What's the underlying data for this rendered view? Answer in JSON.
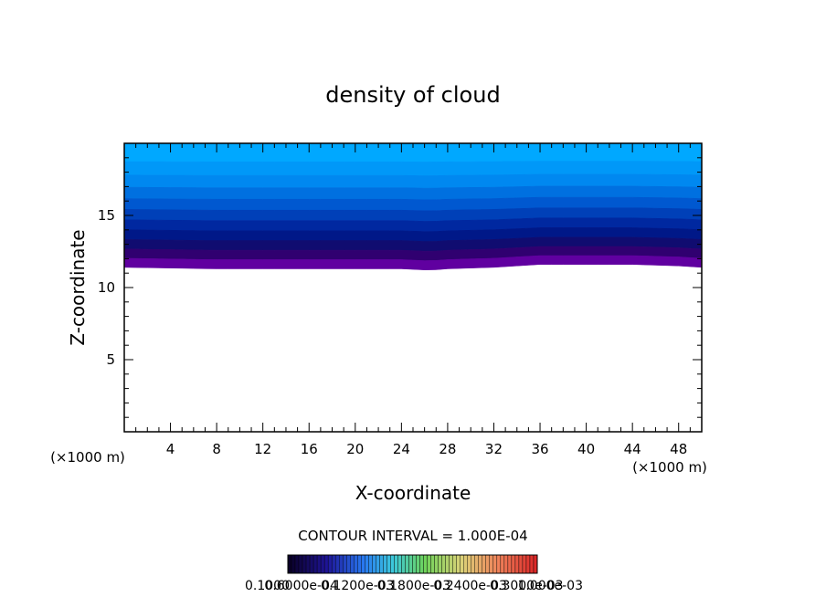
{
  "chart_data": {
    "type": "heatmap",
    "title": "density of cloud",
    "xlabel": "X-coordinate",
    "ylabel": "Z-coordinate",
    "x_unit": "(×1000 m)",
    "x_unit_right": "(×1000 m)",
    "xlim": [
      0,
      50
    ],
    "ylim": [
      0,
      20
    ],
    "x_ticks": [
      "4",
      "8",
      "12",
      "16",
      "20",
      "24",
      "28",
      "32",
      "36",
      "40",
      "44",
      "48"
    ],
    "y_ticks": [
      "5",
      "10",
      "15"
    ],
    "contour_interval_text": "CONTOUR INTERVAL = 1.000E-04",
    "colorbar_labels": [
      "0.1000",
      "0.6000e-04",
      "0.1200e-03",
      "0.1800e-03",
      "0.2400e-03",
      "0.3000e-03",
      "1.000e-03"
    ],
    "cloud_layer": {
      "base_z_profile": [
        [
          0,
          11.4
        ],
        [
          7.5,
          11.3
        ],
        [
          8.5,
          11.3
        ],
        [
          24,
          11.3
        ],
        [
          26.5,
          11.2
        ],
        [
          28,
          11.3
        ],
        [
          32,
          11.4
        ],
        [
          36,
          11.6
        ],
        [
          40,
          11.6
        ],
        [
          44,
          11.6
        ],
        [
          48,
          11.5
        ],
        [
          50,
          11.4
        ]
      ],
      "top_z": 20,
      "colors_top_to_bottom": [
        "#00a8ff",
        "#0098f8",
        "#0088f0",
        "#0070e0",
        "#0058d0",
        "#0040b8",
        "#0028a0",
        "#001888",
        "#100c70",
        "#300070",
        "#6000a0"
      ]
    }
  }
}
